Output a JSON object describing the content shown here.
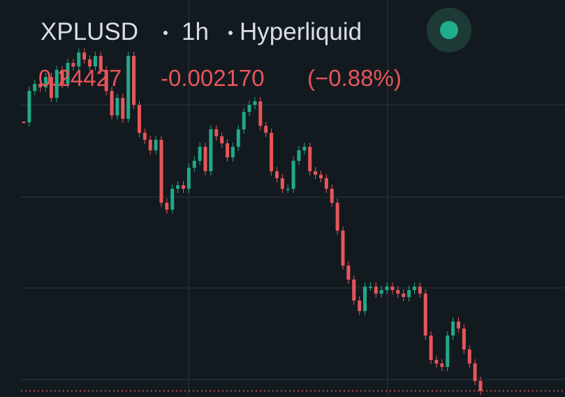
{
  "header": {
    "symbol": "XPLUSD",
    "interval": "1h",
    "exchange": "Hyperliquid",
    "price": "0.24427",
    "change": "-0.002170",
    "change_percent": "(−0.88%)"
  },
  "chart_data": {
    "type": "candlestick",
    "up_color": "#22a88a",
    "down_color": "#e5565b",
    "ylim": [
      0.2436,
      0.2873
    ],
    "values": [
      0.27383,
      0.27729,
      0.27806,
      0.27768,
      0.27883,
      0.27652,
      0.2796,
      0.27806,
      0.28037,
      0.27998,
      0.28152,
      0.28075,
      0.27998,
      0.28114,
      0.2796,
      0.27729,
      0.2746,
      0.27652,
      0.27422,
      0.28114,
      0.27575,
      0.27268,
      0.27191,
      0.27075,
      0.27191,
      0.26498,
      0.26422,
      0.26652,
      0.26691,
      0.26652,
      0.26883,
      0.2696,
      0.27114,
      0.26845,
      0.27306,
      0.27229,
      0.27152,
      0.26998,
      0.27114,
      0.27306,
      0.27498,
      0.27575,
      0.27614,
      0.27345,
      0.27268,
      0.26845,
      0.26768,
      0.26652,
      0.26652,
      0.2696,
      0.27075,
      0.27114,
      0.26845,
      0.26806,
      0.26768,
      0.26652,
      0.26498,
      0.26191,
      0.25806,
      0.25652,
      0.25422,
      0.25306,
      0.25575,
      0.25575,
      0.25498,
      0.25537,
      0.25575,
      0.25537,
      0.25498,
      0.2546,
      0.25537,
      0.25575,
      0.25498,
      0.25037,
      0.24768,
      0.24729,
      0.24691,
      0.25037,
      0.25191,
      0.25114,
      0.24883,
      0.24729,
      0.24537,
      0.24427
    ]
  }
}
